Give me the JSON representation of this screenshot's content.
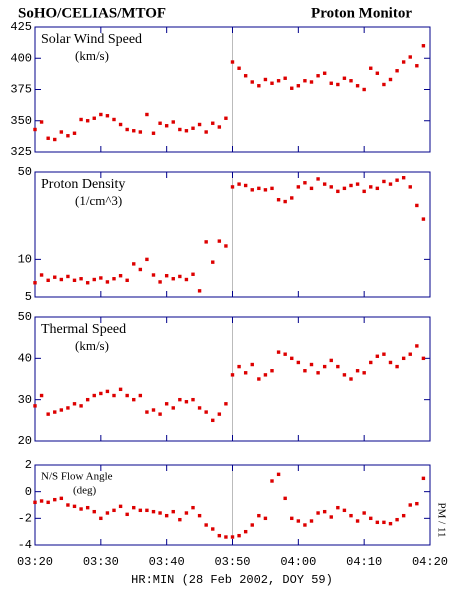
{
  "title_left": "SoHO/CELIAS/MTOF",
  "title_right": "Proton Monitor",
  "xlabel": "HR:MIN (28 Feb 2002, DOY 59)",
  "side_label": "PM / 11",
  "chart_data": [
    {
      "type": "scatter",
      "title": "Solar Wind Speed",
      "unit": "(km/s)",
      "color": "#dd0000",
      "vline_x": "03:50",
      "x": [
        "03:20",
        "03:21",
        "03:22",
        "03:23",
        "03:24",
        "03:25",
        "03:26",
        "03:27",
        "03:28",
        "03:29",
        "03:30",
        "03:31",
        "03:32",
        "03:33",
        "03:34",
        "03:35",
        "03:36",
        "03:37",
        "03:38",
        "03:39",
        "03:40",
        "03:41",
        "03:42",
        "03:43",
        "03:44",
        "03:45",
        "03:46",
        "03:47",
        "03:48",
        "03:49",
        "03:50",
        "03:51",
        "03:52",
        "03:53",
        "03:54",
        "03:55",
        "03:56",
        "03:57",
        "03:58",
        "03:59",
        "04:00",
        "04:01",
        "04:02",
        "04:03",
        "04:04",
        "04:05",
        "04:06",
        "04:07",
        "04:08",
        "04:09",
        "04:10",
        "04:11",
        "04:12",
        "04:13",
        "04:14",
        "04:15",
        "04:16",
        "04:17",
        "04:18",
        "04:19"
      ],
      "values": [
        343,
        349,
        336,
        335,
        341,
        338,
        340,
        351,
        350,
        352,
        355,
        354,
        351,
        347,
        343,
        342,
        341,
        355,
        340,
        348,
        346,
        349,
        343,
        342,
        344,
        347,
        341,
        348,
        345,
        352,
        397,
        392,
        386,
        381,
        378,
        383,
        380,
        382,
        384,
        376,
        378,
        382,
        381,
        386,
        388,
        380,
        379,
        384,
        382,
        378,
        375,
        392,
        388,
        379,
        383,
        390,
        397,
        401,
        394,
        410
      ],
      "xlim": [
        "03:20",
        "04:20"
      ],
      "xticks": [
        "03:20",
        "03:30",
        "03:40",
        "03:50",
        "04:00",
        "04:10",
        "04:20"
      ],
      "ylim": [
        325,
        425
      ],
      "yticks": [
        325,
        350,
        375,
        400,
        425
      ],
      "log": false
    },
    {
      "type": "scatter",
      "title": "Proton Density",
      "unit": "(1/cm^3)",
      "color": "#dd0000",
      "vline_x": "03:50",
      "x": [
        "03:20",
        "03:21",
        "03:22",
        "03:23",
        "03:24",
        "03:25",
        "03:26",
        "03:27",
        "03:28",
        "03:29",
        "03:30",
        "03:31",
        "03:32",
        "03:33",
        "03:34",
        "03:35",
        "03:36",
        "03:37",
        "03:38",
        "03:39",
        "03:40",
        "03:41",
        "03:42",
        "03:43",
        "03:44",
        "03:45",
        "03:46",
        "03:47",
        "03:48",
        "03:49",
        "03:50",
        "03:51",
        "03:52",
        "03:53",
        "03:54",
        "03:55",
        "03:56",
        "03:57",
        "03:58",
        "03:59",
        "04:00",
        "04:01",
        "04:02",
        "04:03",
        "04:04",
        "04:05",
        "04:06",
        "04:07",
        "04:08",
        "04:09",
        "04:10",
        "04:11",
        "04:12",
        "04:13",
        "04:14",
        "04:15",
        "04:16",
        "04:17",
        "04:18",
        "04:19"
      ],
      "values": [
        6.5,
        7.5,
        6.8,
        7.2,
        6.9,
        7.3,
        6.8,
        7.0,
        6.5,
        6.9,
        7.1,
        6.6,
        7.0,
        7.4,
        6.8,
        9.2,
        8.3,
        10.0,
        7.5,
        6.6,
        7.4,
        7.0,
        7.3,
        6.9,
        7.6,
        5.6,
        13.8,
        9.5,
        14.0,
        12.8,
        38,
        40,
        39,
        36,
        37,
        36,
        37,
        30,
        29,
        31,
        38,
        41,
        37,
        44,
        40,
        38,
        35,
        37,
        39,
        40,
        35,
        38,
        37,
        42,
        40,
        43,
        45,
        38,
        27,
        21
      ],
      "xlim": [
        "03:20",
        "04:20"
      ],
      "xticks": [
        "03:20",
        "03:30",
        "03:40",
        "03:50",
        "04:00",
        "04:10",
        "04:20"
      ],
      "ylim": [
        5,
        50
      ],
      "yticks": [
        5,
        10,
        50
      ],
      "log": true
    },
    {
      "type": "scatter",
      "title": "Thermal Speed",
      "unit": "(km/s)",
      "color": "#dd0000",
      "vline_x": "03:50",
      "x": [
        "03:20",
        "03:21",
        "03:22",
        "03:23",
        "03:24",
        "03:25",
        "03:26",
        "03:27",
        "03:28",
        "03:29",
        "03:30",
        "03:31",
        "03:32",
        "03:33",
        "03:34",
        "03:35",
        "03:36",
        "03:37",
        "03:38",
        "03:39",
        "03:40",
        "03:41",
        "03:42",
        "03:43",
        "03:44",
        "03:45",
        "03:46",
        "03:47",
        "03:48",
        "03:49",
        "03:50",
        "03:51",
        "03:52",
        "03:53",
        "03:54",
        "03:55",
        "03:56",
        "03:57",
        "03:58",
        "03:59",
        "04:00",
        "04:01",
        "04:02",
        "04:03",
        "04:04",
        "04:05",
        "04:06",
        "04:07",
        "04:08",
        "04:09",
        "04:10",
        "04:11",
        "04:12",
        "04:13",
        "04:14",
        "04:15",
        "04:16",
        "04:17",
        "04:18",
        "04:19"
      ],
      "values": [
        28.5,
        31,
        26.5,
        27,
        27.5,
        28,
        29,
        28.5,
        30,
        31,
        31.5,
        32,
        31,
        32.5,
        31,
        30,
        31,
        27,
        27.5,
        26.5,
        29,
        28,
        30,
        29.5,
        30,
        28,
        27,
        25,
        26.5,
        29,
        36,
        38,
        36.5,
        38.5,
        35,
        36,
        37,
        41.5,
        41,
        40,
        39,
        37,
        38.5,
        36.5,
        38,
        39.5,
        38,
        36,
        35,
        37,
        36.5,
        39,
        40.5,
        41,
        39,
        38,
        40,
        41,
        43,
        40
      ],
      "xlim": [
        "03:20",
        "04:20"
      ],
      "xticks": [
        "03:20",
        "03:30",
        "03:40",
        "03:50",
        "04:00",
        "04:10",
        "04:20"
      ],
      "ylim": [
        20,
        50
      ],
      "yticks": [
        20,
        30,
        40,
        50
      ],
      "log": false
    },
    {
      "type": "scatter",
      "title": "N/S Flow Angle",
      "unit": "(deg)",
      "color": "#dd0000",
      "vline_x": "03:50",
      "x": [
        "03:20",
        "03:21",
        "03:22",
        "03:23",
        "03:24",
        "03:25",
        "03:26",
        "03:27",
        "03:28",
        "03:29",
        "03:30",
        "03:31",
        "03:32",
        "03:33",
        "03:34",
        "03:35",
        "03:36",
        "03:37",
        "03:38",
        "03:39",
        "03:40",
        "03:41",
        "03:42",
        "03:43",
        "03:44",
        "03:45",
        "03:46",
        "03:47",
        "03:48",
        "03:49",
        "03:50",
        "03:51",
        "03:52",
        "03:53",
        "03:54",
        "03:55",
        "03:56",
        "03:57",
        "03:58",
        "03:59",
        "04:00",
        "04:01",
        "04:02",
        "04:03",
        "04:04",
        "04:05",
        "04:06",
        "04:07",
        "04:08",
        "04:09",
        "04:10",
        "04:11",
        "04:12",
        "04:13",
        "04:14",
        "04:15",
        "04:16",
        "04:17",
        "04:18",
        "04:19"
      ],
      "values": [
        -0.8,
        -0.7,
        -0.8,
        -0.6,
        -0.5,
        -1.0,
        -1.1,
        -1.3,
        -1.2,
        -1.5,
        -2.0,
        -1.6,
        -1.4,
        -1.1,
        -1.7,
        -1.2,
        -1.4,
        -1.4,
        -1.5,
        -1.6,
        -1.8,
        -1.5,
        -2.1,
        -1.6,
        -1.2,
        -1.8,
        -2.5,
        -2.8,
        -3.3,
        -3.4,
        -3.4,
        -3.3,
        -3.0,
        -2.5,
        -1.8,
        -2.0,
        0.8,
        1.3,
        -0.5,
        -2.0,
        -2.2,
        -2.5,
        -2.2,
        -1.6,
        -1.5,
        -1.9,
        -1.2,
        -1.4,
        -1.8,
        -2.2,
        -1.6,
        -2.0,
        -2.3,
        -2.3,
        -2.4,
        -2.1,
        -1.8,
        -1.0,
        -0.9,
        1.0
      ],
      "xlim": [
        "03:20",
        "04:20"
      ],
      "xticks": [
        "03:20",
        "03:30",
        "03:40",
        "03:50",
        "04:00",
        "04:10",
        "04:20"
      ],
      "ylim": [
        -4,
        2
      ],
      "yticks": [
        -4,
        -2,
        0,
        2
      ],
      "log": false
    }
  ]
}
